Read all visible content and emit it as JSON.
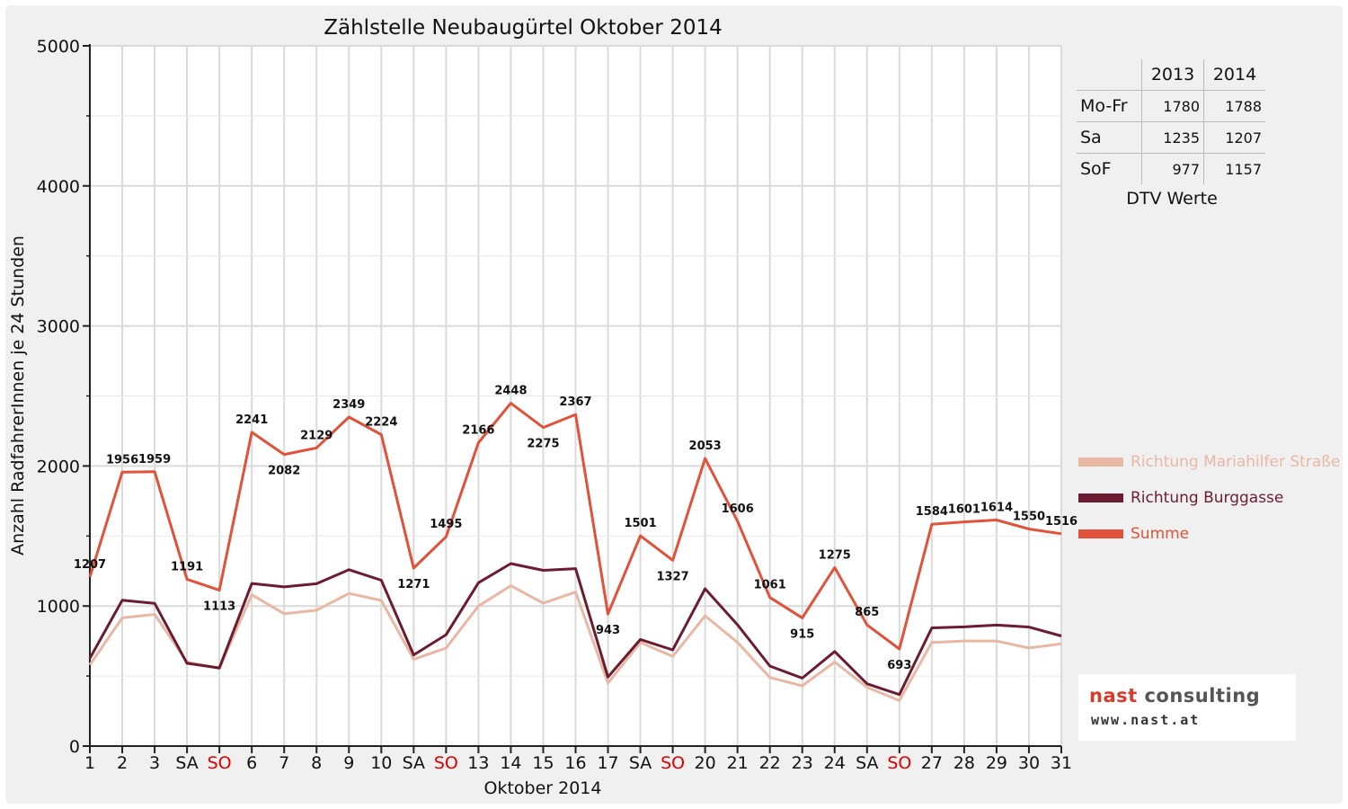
{
  "colors": {
    "mariahilfer": "#e8b8a4",
    "burggasse": "#6b1c30",
    "summe": "#e0523a",
    "weekend_red": "#e00000"
  },
  "chart_data": {
    "type": "line",
    "title": "Zählstelle Neubaugürtel Oktober 2014",
    "xlabel": "Oktober 2014",
    "ylabel": "Anzahl RadfahrerInnen je 24 Stunden",
    "ylim": [
      0,
      5000
    ],
    "yticks": [
      "0",
      "1000",
      "2000",
      "3000",
      "4000",
      "5000"
    ],
    "grid": true,
    "legend_position": "right",
    "categories": [
      "1",
      "2",
      "3",
      "SA",
      "SO",
      "6",
      "7",
      "8",
      "9",
      "10",
      "SA",
      "SO",
      "13",
      "14",
      "15",
      "16",
      "17",
      "SA",
      "SO",
      "20",
      "21",
      "22",
      "23",
      "24",
      "SA",
      "SO",
      "27",
      "28",
      "29",
      "30",
      "31"
    ],
    "weekend_sundays": [
      4,
      11,
      18,
      25
    ],
    "series": [
      {
        "name": "Richtung Mariahilfer Straße",
        "values": [
          580,
          915,
          940,
          600,
          555,
          1080,
          945,
          970,
          1090,
          1040,
          620,
          700,
          1000,
          1145,
          1020,
          1100,
          450,
          740,
          640,
          930,
          740,
          490,
          430,
          600,
          420,
          325,
          740,
          750,
          750,
          700,
          730
        ]
      },
      {
        "name": "Richtung Burggasse",
        "values": [
          627,
          1041,
          1019,
          591,
          558,
          1161,
          1137,
          1159,
          1259,
          1184,
          651,
          795,
          1166,
          1303,
          1255,
          1267,
          493,
          761,
          687,
          1123,
          866,
          571,
          485,
          675,
          445,
          368,
          844,
          851,
          864,
          850,
          786
        ]
      },
      {
        "name": "Summe",
        "values": [
          1207,
          1956,
          1959,
          1191,
          1113,
          2241,
          2082,
          2129,
          2349,
          2224,
          1271,
          1495,
          2166,
          2448,
          2275,
          2367,
          943,
          1501,
          1327,
          2053,
          1606,
          1061,
          915,
          1275,
          865,
          693,
          1584,
          1601,
          1614,
          1550,
          1516
        ]
      }
    ],
    "data_labels": [
      "1207",
      "1956",
      "1959",
      "1191",
      "1113",
      "2241",
      "2082",
      "2129",
      "2349",
      "2224",
      "1271",
      "1495",
      "2166",
      "2448",
      "2275",
      "2367",
      "943",
      "1501",
      "1327",
      "2053",
      "1606",
      "1061",
      "915",
      "1275",
      "865",
      "693",
      "1584",
      "1601",
      "1614",
      "1550",
      "1516"
    ]
  },
  "dtv": {
    "header": [
      "2013",
      "2014"
    ],
    "rows": [
      {
        "label": "Mo-Fr",
        "v2013": "1780",
        "v2014": "1788"
      },
      {
        "label": "Sa",
        "v2013": "1235",
        "v2014": "1207"
      },
      {
        "label": "SoF",
        "v2013": "977",
        "v2014": "1157"
      }
    ],
    "caption": "DTV Werte"
  },
  "logo": {
    "part1": "nast",
    "part2": " consulting",
    "url": "www.nast.at"
  }
}
